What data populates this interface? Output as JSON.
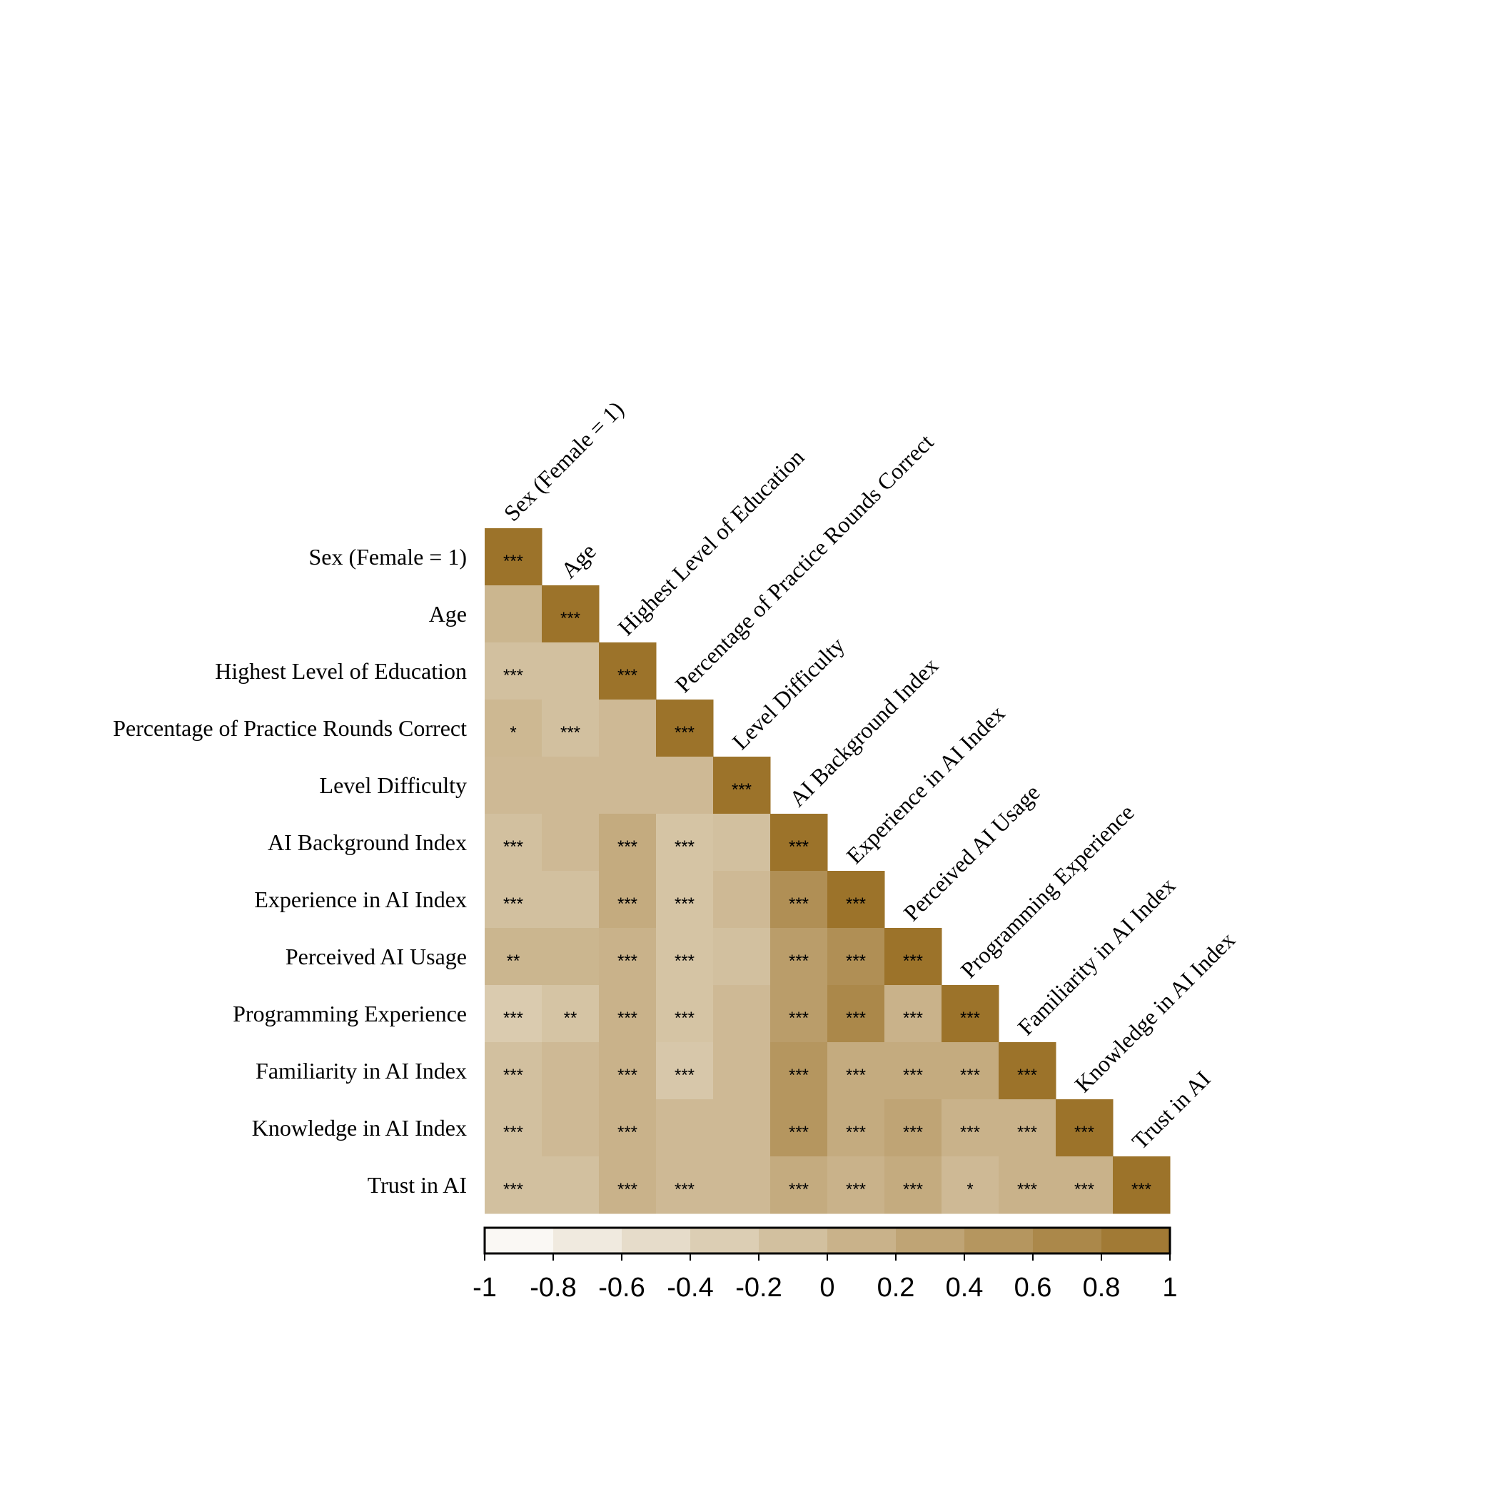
{
  "chart_data": {
    "type": "heatmap",
    "layout": "lower-triangle",
    "title": "",
    "variables": [
      "Sex (Female = 1)",
      "Age",
      "Highest Level of Education",
      "Percentage of Practice Rounds Correct",
      "Level Difficulty",
      "AI Background Index",
      "Experience in AI Index",
      "Perceived AI Usage",
      "Programming Experience",
      "Familiarity in AI Index",
      "Knowledge in AI Index",
      "Trust in AI"
    ],
    "values": [
      [
        1
      ],
      [
        0.05,
        1
      ],
      [
        -0.1,
        -0.1,
        1
      ],
      [
        0.02,
        -0.1,
        0.0,
        1
      ],
      [
        0.0,
        0.0,
        0.0,
        0.0,
        1
      ],
      [
        -0.1,
        0.0,
        0.2,
        -0.15,
        -0.1,
        1
      ],
      [
        -0.1,
        -0.1,
        0.2,
        -0.15,
        0.0,
        0.6,
        1
      ],
      [
        0.05,
        0.05,
        0.1,
        -0.15,
        -0.1,
        0.4,
        0.6,
        1
      ],
      [
        -0.25,
        -0.15,
        0.1,
        -0.15,
        0.0,
        0.4,
        0.7,
        0.1,
        1
      ],
      [
        -0.1,
        0.0,
        0.1,
        -0.2,
        0.0,
        0.5,
        0.2,
        0.2,
        0.2,
        1
      ],
      [
        -0.1,
        0.0,
        0.1,
        0.0,
        0.0,
        0.5,
        0.2,
        0.3,
        0.1,
        0.1,
        1
      ],
      [
        -0.1,
        -0.1,
        0.1,
        0.0,
        0.0,
        0.2,
        0.1,
        0.2,
        0.0,
        0.1,
        0.1,
        1
      ]
    ],
    "significance": [
      [
        "***"
      ],
      [
        "",
        "***"
      ],
      [
        "***",
        "",
        "***"
      ],
      [
        "*",
        "***",
        "",
        "***"
      ],
      [
        "",
        "",
        "",
        "",
        "***"
      ],
      [
        "***",
        "",
        "***",
        "***",
        "",
        "***"
      ],
      [
        "***",
        "",
        "***",
        "***",
        "",
        "***",
        "***"
      ],
      [
        "**",
        "",
        "***",
        "***",
        "",
        "***",
        "***",
        "***"
      ],
      [
        "***",
        "**",
        "***",
        "***",
        "",
        "***",
        "***",
        "***",
        "***"
      ],
      [
        "***",
        "",
        "***",
        "***",
        "",
        "***",
        "***",
        "***",
        "***",
        "***"
      ],
      [
        "***",
        "",
        "***",
        "",
        "",
        "***",
        "***",
        "***",
        "***",
        "***",
        "***"
      ],
      [
        "***",
        "",
        "***",
        "***",
        "",
        "***",
        "***",
        "***",
        "*",
        "***",
        "***",
        "***"
      ]
    ],
    "colorbar": {
      "range": [
        -1,
        1
      ],
      "ticks": [
        "-1",
        "-0.8",
        "-0.6",
        "-0.4",
        "-0.2",
        "0",
        "0.2",
        "0.4",
        "0.6",
        "0.8",
        "1"
      ],
      "low_color": "#ffffff",
      "high_color": "#9c732a",
      "bins": 10
    }
  }
}
